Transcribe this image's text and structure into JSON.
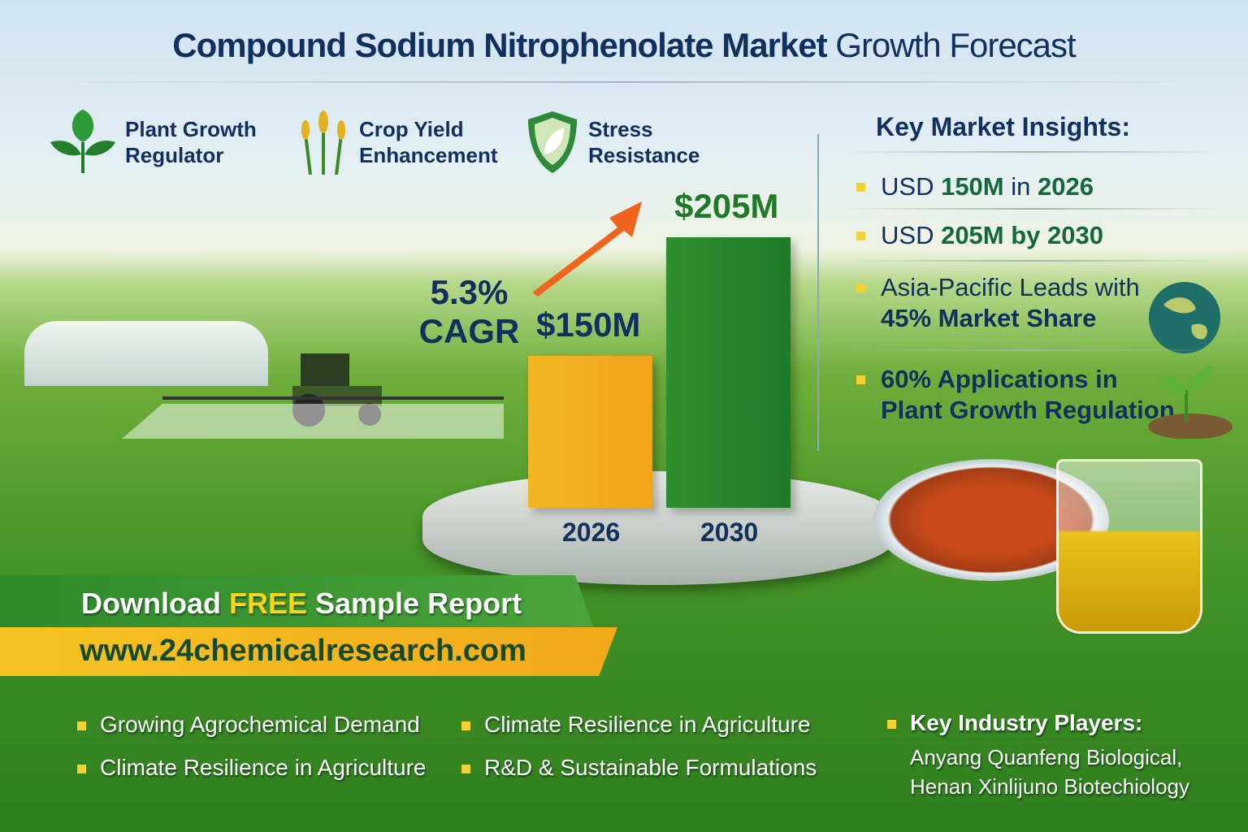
{
  "title": {
    "bold": "Compound Sodium Nitrophenolate Market",
    "light": "Growth Forecast"
  },
  "features": [
    {
      "icon": "leaf-icon",
      "line1": "Plant Growth",
      "line2": "Regulator"
    },
    {
      "icon": "wheat-icon",
      "line1": "Crop Yield",
      "line2": "Enhancement"
    },
    {
      "icon": "shield-leaf-icon",
      "line1": "Stress",
      "line2": "Resistance"
    }
  ],
  "insights": {
    "title": "Key Market Insights:",
    "items": [
      {
        "pre": "USD ",
        "b1": "150M",
        "mid": " in ",
        "b2": "2026"
      },
      {
        "pre": "USD ",
        "b1": "205M by 2030"
      },
      {
        "pre": "Asia-Pacific Leads with",
        "b1": "45% Market Share"
      },
      {
        "b1": "60% Applications in",
        "b2": "Plant Growth Regulation"
      }
    ]
  },
  "cagr": {
    "value": "5.3%",
    "label": "CAGR"
  },
  "chart_data": {
    "type": "bar",
    "categories": [
      "2026",
      "2030"
    ],
    "values": [
      150,
      205
    ],
    "value_labels": [
      "$150M",
      "$205M"
    ],
    "colors": [
      "#f2b622",
      "#2f8f2f"
    ],
    "unit": "USD million",
    "title": "",
    "xlabel": "",
    "ylabel": ""
  },
  "cta": {
    "download": "Download ",
    "free": "FREE",
    "rest": " Sample Report",
    "url": "www.24chemicalresearch.com"
  },
  "bullets": [
    "Growing Agrochemical Demand",
    "Climate Resilience in Agriculture",
    "Climate Resilience in Agriculture",
    "R&D & Sustainable Formulations"
  ],
  "players": {
    "title": "Key Industry Players:",
    "line1": "Anyang Quanfeng Biological,",
    "line2": "Henan Xinlijuno Biotechiology"
  },
  "colors": {
    "navy": "#12305e",
    "green": "#2f8f2f",
    "yellow": "#f2b622",
    "arrow": "#f0641e"
  }
}
